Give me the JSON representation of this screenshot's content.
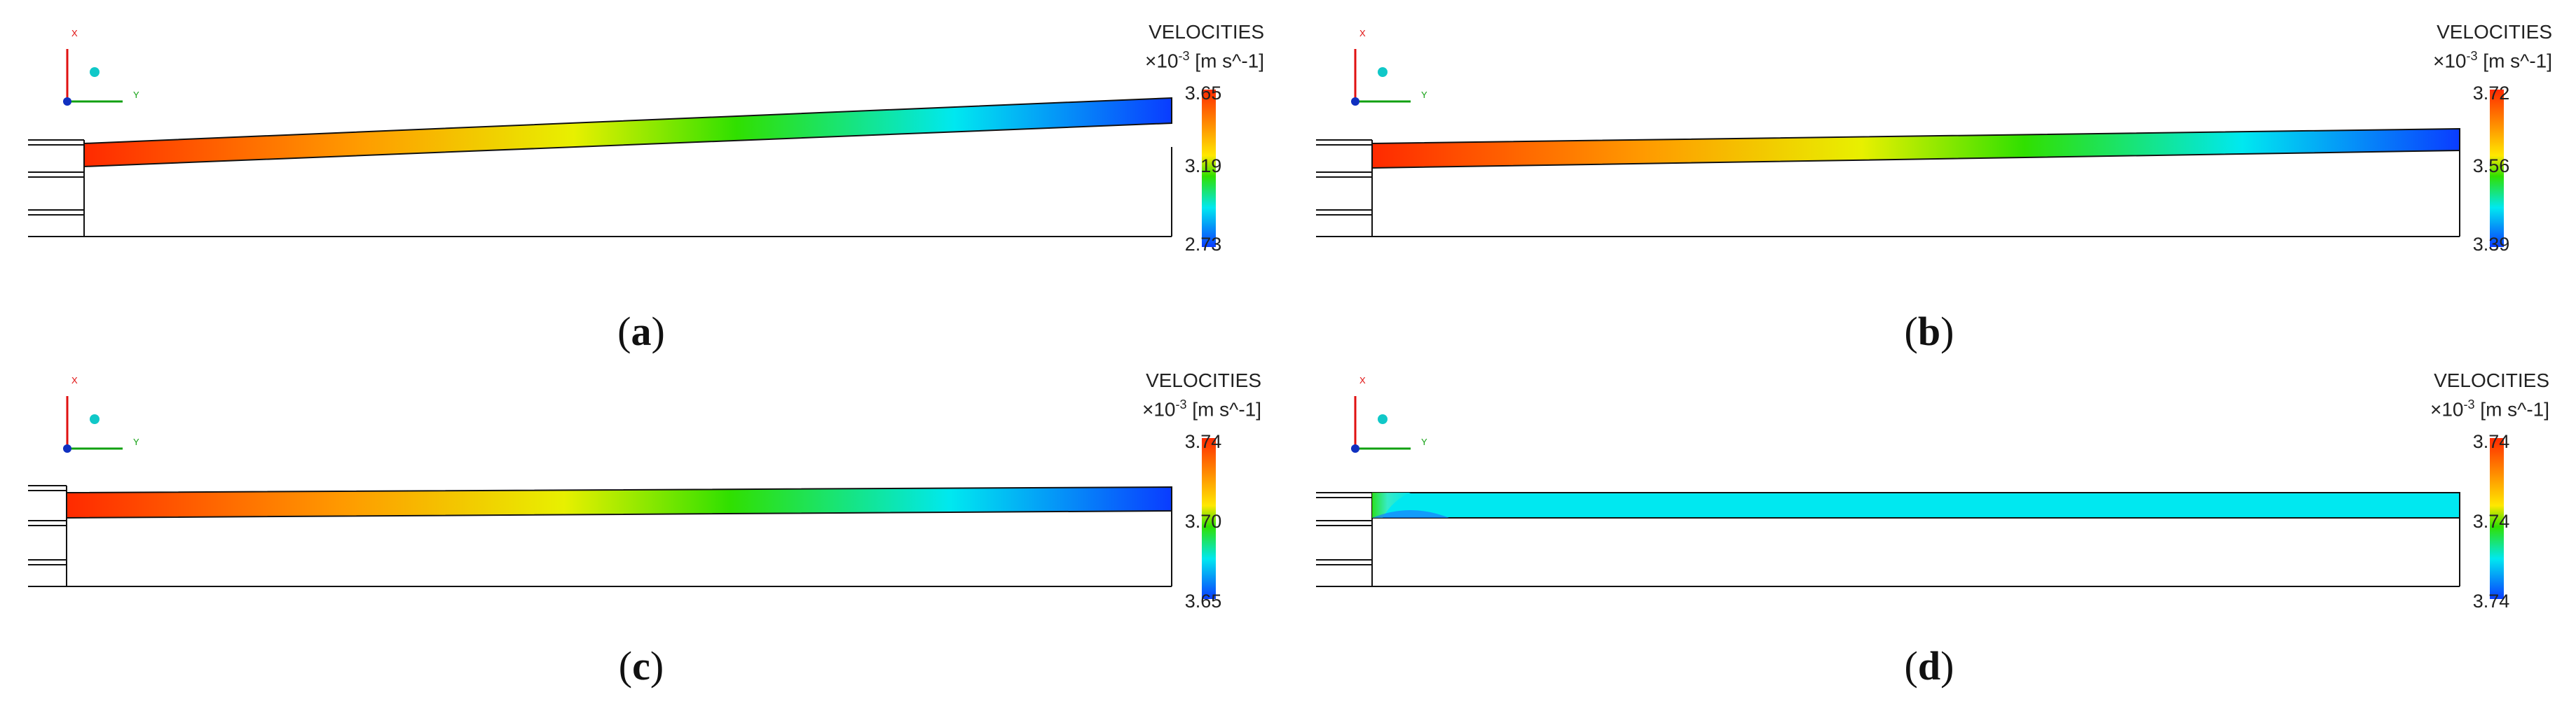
{
  "panels": [
    {
      "id": "a",
      "caption": "a",
      "legend": {
        "title": "VELOCITIES",
        "units_prefix": "×10",
        "units_exp": "-3",
        "units_suffix": " [m s^-1]",
        "max": "3.65",
        "mid": "3.19",
        "min": "2.73"
      }
    },
    {
      "id": "b",
      "caption": "b",
      "legend": {
        "title": "VELOCITIES",
        "units_prefix": "×10",
        "units_exp": "-3",
        "units_suffix": " [m s^-1]",
        "max": "3.72",
        "mid": "3.56",
        "min": "3.39"
      }
    },
    {
      "id": "c",
      "caption": "c",
      "legend": {
        "title": "VELOCITIES",
        "units_prefix": "×10",
        "units_exp": "-3",
        "units_suffix": " [m s^-1]",
        "max": "3.74",
        "mid": "3.70",
        "min": "3.65"
      }
    },
    {
      "id": "d",
      "caption": "d",
      "legend": {
        "title": "VELOCITIES",
        "units_prefix": "×10",
        "units_exp": "-3",
        "units_suffix": " [m s^-1]",
        "max": "3.74",
        "mid": "3.74",
        "min": "3.74"
      }
    }
  ],
  "axes": {
    "x_label": "X",
    "y_label": "Y"
  },
  "colors": {
    "red": "#ff2a00",
    "orange": "#ff9a00",
    "yellow": "#ffe800",
    "green": "#30e000",
    "cyan": "#00e8f0",
    "blue": "#0a3cff",
    "outline": "#111111"
  }
}
